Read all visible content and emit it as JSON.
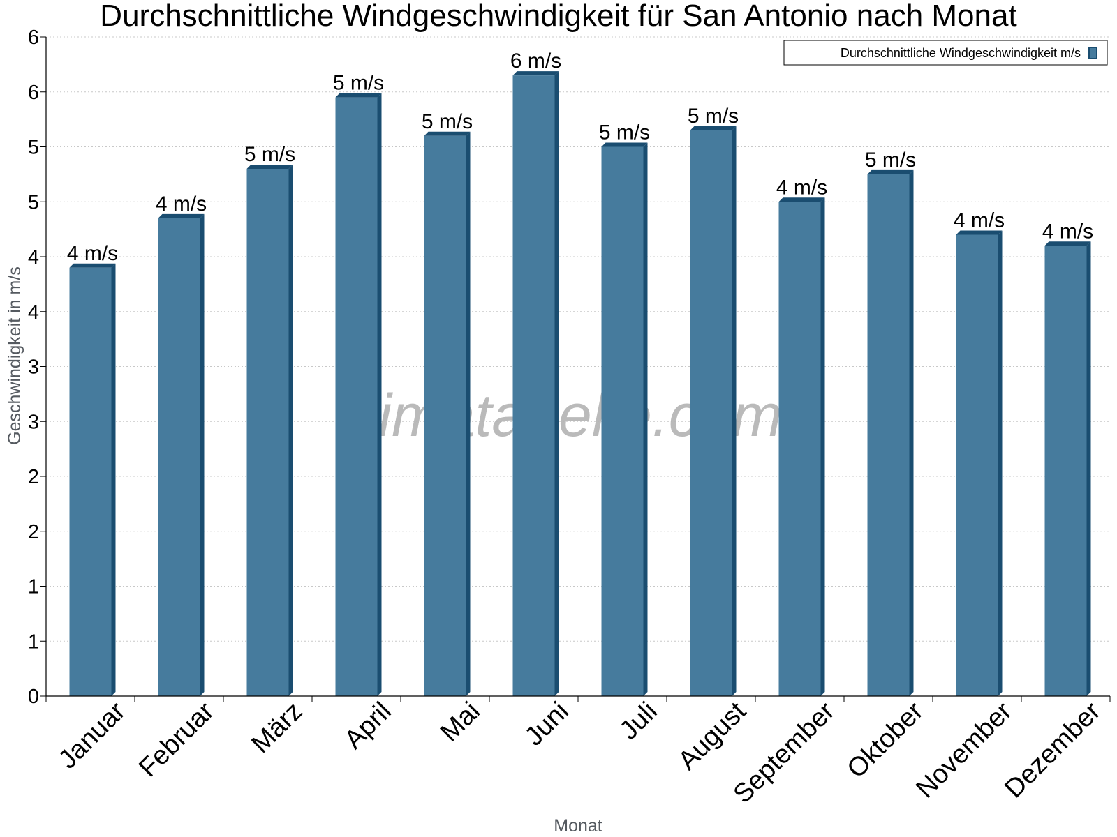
{
  "chart_data": {
    "type": "bar",
    "title": "Durchschnittliche Windgeschwindigkeit für San Antonio nach Monat",
    "xlabel": "Monat",
    "ylabel": "Geschwindigkeit in m/s",
    "categories": [
      "Januar",
      "Februar",
      "März",
      "April",
      "Mai",
      "Juni",
      "Juli",
      "August",
      "September",
      "Oktober",
      "November",
      "Dezember"
    ],
    "series": [
      {
        "name": "Durchschnittliche Windgeschwindigkeit m/s",
        "values": [
          3.9,
          4.35,
          4.8,
          5.45,
          5.1,
          5.65,
          5.0,
          5.15,
          4.5,
          4.75,
          4.2,
          4.1
        ],
        "labels": [
          "4 m/s",
          "4 m/s",
          "5 m/s",
          "5 m/s",
          "5 m/s",
          "6 m/s",
          "5 m/s",
          "5 m/s",
          "4 m/s",
          "5 m/s",
          "4 m/s",
          "4 m/s"
        ]
      }
    ],
    "ylim": [
      0,
      6
    ],
    "y_ticks": [
      0,
      0.5,
      1,
      1.5,
      2,
      2.5,
      3,
      3.5,
      4,
      4.5,
      5,
      5.5,
      6
    ],
    "y_tick_labels": [
      "0",
      "1",
      "1",
      "2",
      "2",
      "3",
      "3",
      "4",
      "4",
      "5",
      "5",
      "6",
      "6"
    ],
    "grid": true,
    "legend_position": "top-right",
    "colors": {
      "bar": "#467b9d",
      "bar_side": "#1a4d70",
      "grid": "#c8c8c8"
    }
  },
  "watermark": "klimatabelle.com"
}
